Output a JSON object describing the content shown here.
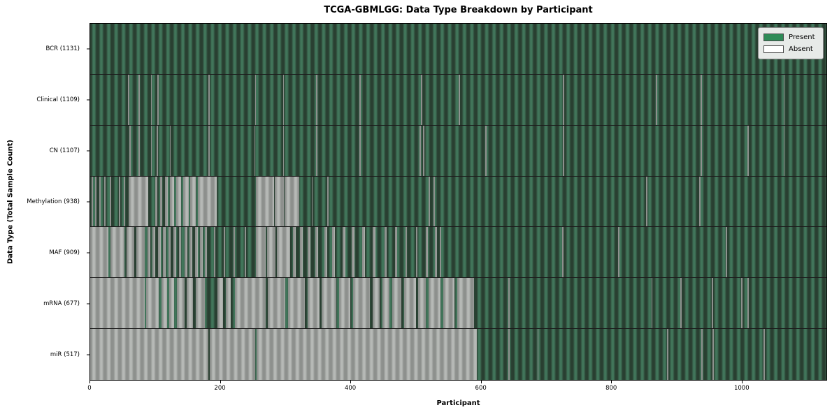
{
  "title": "TCGA-GBMLGG: Data Type Breakdown by Participant",
  "axes": {
    "xlabel": "Participant",
    "ylabel": "Data Type (Total Sample Count)"
  },
  "legend": {
    "items": [
      {
        "label": "Present",
        "color": "#2e8b57"
      },
      {
        "label": "Absent",
        "color": "#ffffff"
      }
    ]
  },
  "colors": {
    "present": "#2e8b57",
    "absent": "#ffffff",
    "present_stripe_light": "#41755a",
    "present_stripe_dark": "#293f31",
    "absent_stripe_light": "#b6b9b6",
    "absent_stripe_dark": "#8d908d"
  },
  "chart_data": {
    "type": "heatmap",
    "title": "TCGA-GBMLGG: Data Type Breakdown by Participant",
    "xlabel": "Participant",
    "ylabel": "Data Type (Total Sample Count)",
    "x_range": [
      0,
      1131
    ],
    "x_ticks": [
      0,
      200,
      400,
      600,
      800,
      1000
    ],
    "legend_position": "upper right",
    "grid": false,
    "rows": [
      {
        "data_type": "BCR",
        "label": "BCR (1131)",
        "total_samples": 1131,
        "absent_segments": []
      },
      {
        "data_type": "Clinical",
        "label": "Clinical (1109)",
        "total_samples": 1109,
        "absent_segments": [
          [
            58,
            60
          ],
          [
            74,
            76
          ],
          [
            93,
            95
          ],
          [
            103,
            105
          ],
          [
            182,
            184
          ],
          [
            253,
            255
          ],
          [
            296,
            298
          ],
          [
            347,
            349
          ],
          [
            414,
            416
          ],
          [
            508,
            510
          ],
          [
            566,
            568
          ],
          [
            726,
            728
          ],
          [
            869,
            871
          ],
          [
            938,
            940
          ],
          [
            1065,
            1067
          ]
        ]
      },
      {
        "data_type": "CN",
        "label": "CN (1107)",
        "total_samples": 1107,
        "absent_segments": [
          [
            60,
            62
          ],
          [
            74,
            76
          ],
          [
            93,
            95
          ],
          [
            102,
            104
          ],
          [
            122,
            124
          ],
          [
            182,
            184
          ],
          [
            252,
            254
          ],
          [
            296,
            298
          ],
          [
            347,
            349
          ],
          [
            414,
            416
          ],
          [
            506,
            508
          ],
          [
            511,
            513
          ],
          [
            607,
            609
          ],
          [
            726,
            728
          ],
          [
            938,
            940
          ],
          [
            1010,
            1012
          ],
          [
            1065,
            1067
          ]
        ]
      },
      {
        "data_type": "Methylation",
        "label": "Methylation (938)",
        "total_samples": 938,
        "absent_segments": [
          [
            2,
            4
          ],
          [
            8,
            10
          ],
          [
            14,
            16
          ],
          [
            22,
            24
          ],
          [
            30,
            32
          ],
          [
            44,
            46
          ],
          [
            52,
            54
          ],
          [
            59,
            89
          ],
          [
            100,
            103
          ],
          [
            107,
            111
          ],
          [
            115,
            119
          ],
          [
            122,
            129
          ],
          [
            132,
            140
          ],
          [
            143,
            151
          ],
          [
            154,
            162
          ],
          [
            165,
            194
          ],
          [
            255,
            282
          ],
          [
            284,
            297
          ],
          [
            299,
            321
          ],
          [
            340,
            342
          ],
          [
            364,
            366
          ],
          [
            520,
            522
          ],
          [
            527,
            529
          ],
          [
            854,
            856
          ],
          [
            936,
            938
          ]
        ]
      },
      {
        "data_type": "MAF",
        "label": "MAF (909)",
        "total_samples": 909,
        "absent_segments": [
          [
            0,
            28
          ],
          [
            31,
            53
          ],
          [
            56,
            68
          ],
          [
            71,
            84
          ],
          [
            88,
            92
          ],
          [
            96,
            100
          ],
          [
            104,
            108
          ],
          [
            112,
            116
          ],
          [
            120,
            124
          ],
          [
            128,
            132
          ],
          [
            136,
            140
          ],
          [
            145,
            149
          ],
          [
            153,
            157
          ],
          [
            161,
            165
          ],
          [
            169,
            173
          ],
          [
            176,
            179
          ],
          [
            190,
            192
          ],
          [
            205,
            207
          ],
          [
            220,
            222
          ],
          [
            237,
            239
          ],
          [
            255,
            270
          ],
          [
            272,
            285
          ],
          [
            287,
            307
          ],
          [
            312,
            316
          ],
          [
            322,
            326
          ],
          [
            334,
            338
          ],
          [
            346,
            350
          ],
          [
            360,
            364
          ],
          [
            372,
            376
          ],
          [
            388,
            392
          ],
          [
            402,
            406
          ],
          [
            418,
            422
          ],
          [
            434,
            438
          ],
          [
            452,
            455
          ],
          [
            468,
            471
          ],
          [
            484,
            487
          ],
          [
            500,
            503
          ],
          [
            516,
            519
          ],
          [
            530,
            533
          ],
          [
            537,
            539
          ],
          [
            725,
            727
          ],
          [
            811,
            813
          ],
          [
            976,
            978
          ]
        ]
      },
      {
        "data_type": "mRNA",
        "label": "mRNA (677)",
        "total_samples": 677,
        "absent_segments": [
          [
            0,
            84
          ],
          [
            86,
            105
          ],
          [
            110,
            118
          ],
          [
            121,
            129
          ],
          [
            133,
            145
          ],
          [
            148,
            158
          ],
          [
            162,
            176
          ],
          [
            196,
            204
          ],
          [
            208,
            216
          ],
          [
            222,
            270
          ],
          [
            273,
            300
          ],
          [
            304,
            330
          ],
          [
            334,
            352
          ],
          [
            356,
            378
          ],
          [
            382,
            400
          ],
          [
            404,
            430
          ],
          [
            434,
            445
          ],
          [
            449,
            460
          ],
          [
            464,
            478
          ],
          [
            482,
            500
          ],
          [
            504,
            516
          ],
          [
            520,
            538
          ],
          [
            542,
            560
          ],
          [
            564,
            590
          ],
          [
            642,
            644
          ],
          [
            862,
            864
          ],
          [
            907,
            909
          ],
          [
            955,
            957
          ],
          [
            1000,
            1002
          ],
          [
            1010,
            1012
          ]
        ]
      },
      {
        "data_type": "miR",
        "label": "miR (517)",
        "total_samples": 517,
        "absent_segments": [
          [
            0,
            182
          ],
          [
            184,
            254
          ],
          [
            256,
            594
          ],
          [
            642,
            644
          ],
          [
            687,
            689
          ],
          [
            886,
            888
          ],
          [
            939,
            941
          ],
          [
            956,
            958
          ],
          [
            1034,
            1036
          ]
        ]
      }
    ]
  }
}
